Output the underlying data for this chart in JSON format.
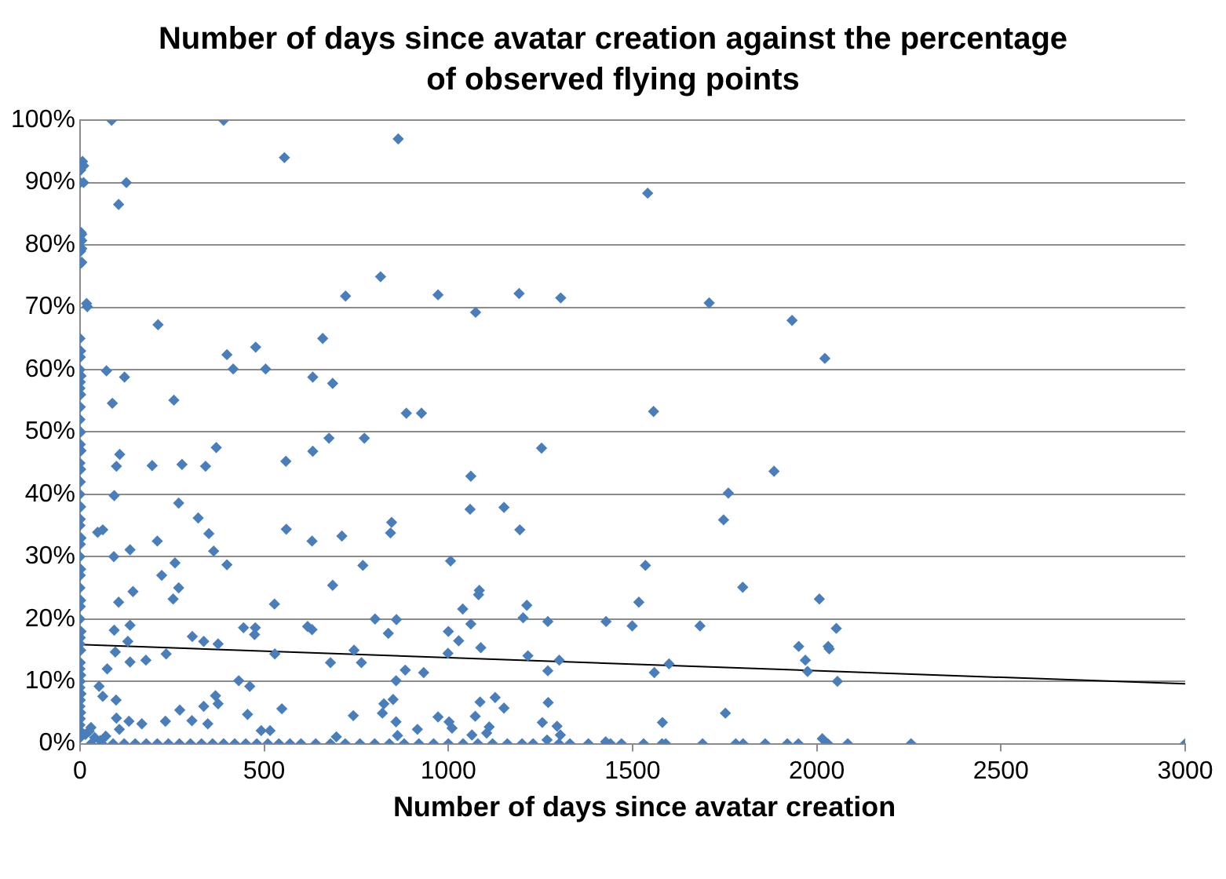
{
  "chart_data": {
    "type": "scatter",
    "title": "Number of days since avatar creation against the percentage of observed flying points",
    "xlabel": "Number of days since avatar creation",
    "xlim": [
      0,
      3000
    ],
    "xticks": [
      0,
      500,
      1000,
      1500,
      2000,
      2500,
      3000
    ],
    "ylim": [
      0,
      100
    ],
    "yticks": [
      {
        "value": 0,
        "label": "0%"
      },
      {
        "value": 10,
        "label": "10%"
      },
      {
        "value": 20,
        "label": "20%"
      },
      {
        "value": 30,
        "label": "30%"
      },
      {
        "value": 40,
        "label": "40%"
      },
      {
        "value": 50,
        "label": "50%"
      },
      {
        "value": 60,
        "label": "60%"
      },
      {
        "value": 70,
        "label": "70%"
      },
      {
        "value": 80,
        "label": "80%"
      },
      {
        "value": 90,
        "label": "90%"
      },
      {
        "value": 100,
        "label": "100%"
      }
    ],
    "grid": "y",
    "legend": false,
    "series": [
      {
        "color": "#4a7ebb",
        "marker": "diamond",
        "x": [
          0,
          2,
          1,
          3,
          0,
          2,
          1,
          0,
          2,
          1,
          0,
          3,
          1,
          0,
          2,
          1,
          0,
          2,
          1,
          3,
          0,
          2,
          1,
          0,
          2,
          1,
          0,
          3,
          1,
          0,
          2,
          1,
          0,
          2,
          1,
          0,
          3,
          1,
          0,
          2,
          1,
          0,
          2,
          1,
          0,
          3,
          1,
          0,
          2,
          1,
          0,
          2,
          1,
          7,
          10,
          10,
          5,
          5,
          5,
          5,
          18,
          20,
          86,
          390,
          126,
          105,
          555,
          864,
          212,
          72,
          121,
          88,
          255,
          399,
          416,
          477,
          504,
          632,
          659,
          686,
          721,
          816,
          886,
          927,
          972,
          1541,
          1074,
          1192,
          1305,
          1557,
          1708,
          1933,
          2022,
          108,
          99,
          196,
          277,
          341,
          370,
          93,
          268,
          321,
          350,
          363,
          399,
          210,
          258,
          222,
          268,
          253,
          105,
          144,
          136,
          92,
          48,
          62,
          559,
          632,
          676,
          772,
          560,
          630,
          711,
          768,
          846,
          843,
          686,
          528,
          801,
          859,
          837,
          1006,
          1000,
          93,
          136,
          130,
          136,
          179,
          234,
          96,
          74,
          305,
          336,
          375,
          444,
          476,
          474,
          529,
          618,
          630,
          744,
          764,
          680,
          883,
          933,
          1002,
          858,
          850,
          825,
          821,
          858,
          916,
          972,
          742,
          431,
          461,
          455,
          548,
          375,
          368,
          336,
          347,
          304,
          271,
          232,
          168,
          133,
          99,
          107,
          98,
          62,
          52,
          492,
          516,
          696,
          862,
          30,
          1253,
          1061,
          1059,
          1151,
          1194,
          1884,
          1760,
          1747,
          1535,
          1799,
          2007,
          1084,
          1082,
          1039,
          1213,
          1203,
          1270,
          1061,
          1028,
          999,
          1088,
          1216,
          1301,
          1270,
          1428,
          1499,
          1517,
          1683,
          1559,
          1599,
          1951,
          1969,
          1975,
          2031,
          1086,
          1127,
          1151,
          1073,
          1111,
          1104,
          1064,
          1010,
          1271,
          1255,
          1295,
          1304,
          1268,
          1581,
          1752,
          1427,
          2034,
          2053,
          2056,
          2015,
          15,
          25,
          40,
          55,
          70,
          30,
          60,
          90,
          120,
          150,
          180,
          210,
          240,
          270,
          300,
          330,
          360,
          390,
          420,
          450,
          480,
          510,
          540,
          570,
          600,
          640,
          680,
          720,
          760,
          800,
          840,
          880,
          920,
          960,
          1000,
          1040,
          1080,
          1120,
          1160,
          1200,
          1230,
          1300,
          1330,
          1380,
          1430,
          1440,
          1470,
          1530,
          1580,
          1590,
          1690,
          1780,
          1800,
          1860,
          1920,
          1950,
          2030,
          2084,
          2256,
          3000
        ],
        "values": [
          93,
          92,
          90,
          82,
          81,
          79,
          77,
          65,
          63,
          62,
          60,
          59,
          58,
          57,
          56,
          54,
          52,
          50,
          48,
          47,
          45,
          44,
          42,
          40,
          38,
          36,
          35,
          33,
          32,
          30,
          28,
          27,
          25,
          23,
          22,
          20,
          18,
          17,
          16,
          15,
          13,
          12,
          11,
          10,
          9,
          8,
          7,
          6,
          5,
          4,
          3,
          2,
          1,
          93.4,
          92.7,
          90,
          81.7,
          80.7,
          79.4,
          77.2,
          70.6,
          70.1,
          100,
          100,
          90,
          86.5,
          94,
          97,
          67.2,
          59.8,
          58.8,
          54.6,
          55.1,
          62.4,
          60.1,
          63.6,
          60.1,
          58.8,
          65,
          57.8,
          71.8,
          74.9,
          53,
          53,
          72,
          88.3,
          69.2,
          72.2,
          71.5,
          53.3,
          70.7,
          67.9,
          61.8,
          46.4,
          44.5,
          44.6,
          44.8,
          44.5,
          47.5,
          39.8,
          38.6,
          36.2,
          33.7,
          30.9,
          28.7,
          32.5,
          29,
          27,
          25,
          23.2,
          22.7,
          24.4,
          31.1,
          30,
          33.9,
          34.3,
          45.3,
          46.9,
          49,
          49,
          34.4,
          32.5,
          33.3,
          28.6,
          35.5,
          33.8,
          25.4,
          22.4,
          20,
          19.9,
          17.7,
          29.3,
          18,
          18.2,
          19,
          16.4,
          13.1,
          13.4,
          14.4,
          14.7,
          12,
          17.2,
          16.4,
          16,
          18.6,
          18.6,
          17.5,
          14.4,
          18.8,
          18.3,
          15,
          13,
          13,
          11.8,
          11.4,
          3.5,
          10.1,
          7.1,
          6.4,
          4.9,
          3.5,
          2.3,
          4.3,
          4.5,
          10.1,
          9.2,
          4.7,
          5.6,
          6.4,
          7.7,
          6,
          3.2,
          3.7,
          5.4,
          3.6,
          3.2,
          3.6,
          4.1,
          2.3,
          7,
          7.6,
          9.2,
          2.1,
          2.1,
          1.1,
          1.3,
          2.6,
          47.4,
          42.9,
          37.6,
          37.9,
          34.3,
          43.7,
          40.2,
          35.9,
          28.6,
          25.1,
          23.2,
          24.6,
          23.9,
          21.6,
          22.2,
          20.2,
          19.6,
          19.2,
          16.5,
          14.5,
          15.4,
          14.1,
          13.4,
          11.7,
          19.6,
          18.9,
          22.7,
          18.9,
          11.4,
          12.8,
          15.6,
          13.4,
          11.6,
          15.6,
          6.7,
          7.4,
          5.7,
          4.4,
          2.7,
          1.7,
          1.4,
          2.5,
          6.6,
          3.4,
          2.8,
          1.4,
          0.6,
          3.4,
          4.9,
          0.3,
          15.2,
          18.5,
          10,
          0.8,
          1.5,
          2,
          1,
          0.5,
          1.2,
          0,
          0,
          0,
          0,
          0,
          0,
          0,
          0,
          0,
          0,
          0,
          0,
          0,
          0,
          0,
          0,
          0,
          0,
          0,
          0,
          0,
          0,
          0,
          0,
          0,
          0,
          0,
          0,
          0,
          0,
          0,
          0,
          0,
          0,
          0,
          0,
          0,
          0,
          0,
          0,
          0,
          0,
          0,
          0,
          0,
          0,
          0,
          0,
          0,
          0,
          0,
          0,
          0,
          0,
          0
        ]
      },
      {
        "type": "line",
        "color": "#000000",
        "marker": "none",
        "x": [
          0,
          3000
        ],
        "values": [
          15.9,
          9.6
        ]
      }
    ]
  }
}
